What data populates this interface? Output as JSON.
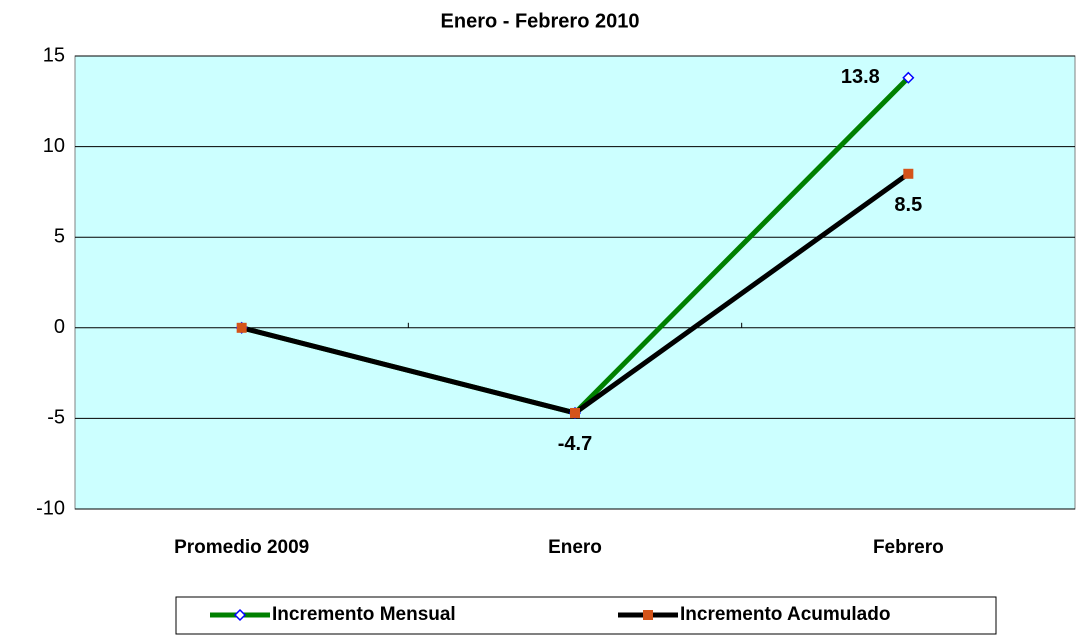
{
  "chart_data": {
    "type": "line",
    "title": "Enero - Febrero 2010",
    "categories": [
      "Promedio 2009",
      "Enero",
      "Febrero"
    ],
    "series": [
      {
        "name": "Incremento Mensual",
        "color": "#008000",
        "marker": "diamond",
        "marker_color": "#0000ff",
        "values": [
          0,
          -4.7,
          13.8
        ],
        "value_labels": [
          null,
          null,
          "13.8"
        ]
      },
      {
        "name": "Incremento Acumulado",
        "color": "#000000",
        "marker": "square",
        "marker_color": "#d4541a",
        "values": [
          0,
          -4.7,
          8.5
        ],
        "value_labels": [
          null,
          "-4.7",
          "8.5"
        ]
      }
    ],
    "ylim": [
      -10,
      15
    ],
    "yticks": [
      -10,
      -5,
      0,
      5,
      10,
      15
    ],
    "grid": true,
    "plot_background": "#ccffff",
    "legend": "bottom"
  }
}
